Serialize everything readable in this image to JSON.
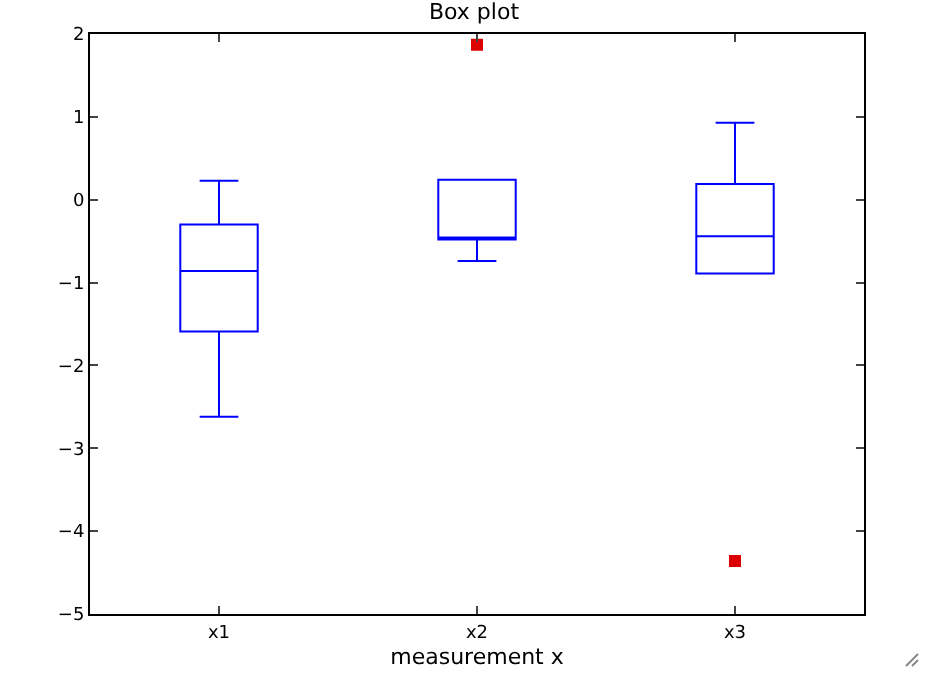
{
  "chart_data": {
    "type": "box",
    "title": "Box plot",
    "xlabel": "measurement x",
    "categories": [
      "x1",
      "x2",
      "x3"
    ],
    "series": [
      {
        "color": "#0000ff",
        "boxes": [
          {
            "low": -2.62,
            "q1": -1.59,
            "median": -0.86,
            "q3": -0.3,
            "high": 0.23
          },
          {
            "low": -0.74,
            "q1": -0.48,
            "median": -0.48,
            "q3": 0.24,
            "high": 0.24,
            "outliers": [
              1.87
            ]
          },
          {
            "low": -0.89,
            "q1": -0.89,
            "median": -0.44,
            "q3": 0.19,
            "high": 0.93,
            "outliers": [
              -4.36
            ]
          }
        ]
      }
    ],
    "marker": "square",
    "ylim": [
      -5,
      2
    ],
    "yticks": [
      -5,
      -4,
      -3,
      -2,
      -1,
      0,
      1,
      2
    ],
    "grid": false
  }
}
